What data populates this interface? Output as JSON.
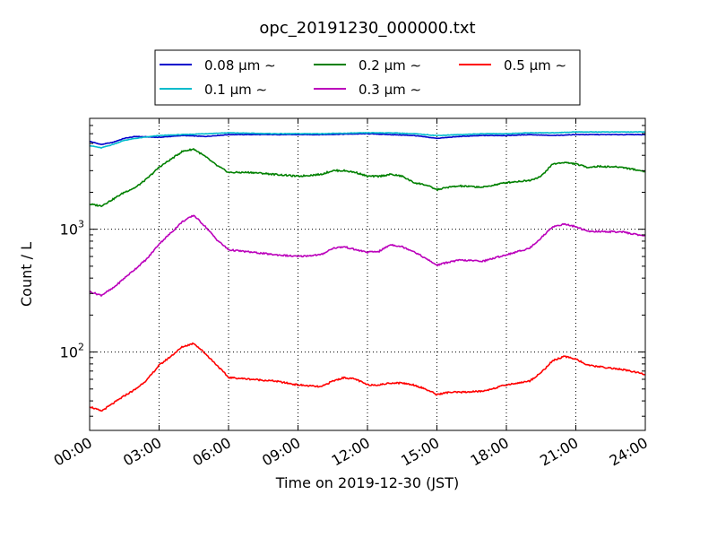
{
  "chart_data": {
    "type": "line",
    "title": "opc_20191230_000000.txt",
    "xlabel": "Time on 2019-12-30 (JST)",
    "ylabel": "Count / L",
    "yscale": "log",
    "xlim": [
      0,
      24
    ],
    "ylim": [
      23,
      8000
    ],
    "grid": true,
    "legend_position": "top-center",
    "x_tick_labels": [
      "00:00",
      "03:00",
      "06:00",
      "09:00",
      "12:00",
      "15:00",
      "18:00",
      "21:00",
      "24:00"
    ],
    "y_tick_labels": [
      {
        "value": 100,
        "base": "10",
        "exp": "2"
      },
      {
        "value": 1000,
        "base": "10",
        "exp": "3"
      }
    ],
    "series": [
      {
        "name": "0.08 μm ∼",
        "color": "#0000cc",
        "x": [
          0,
          0.5,
          1,
          1.5,
          2,
          3,
          4,
          5,
          6,
          8,
          10,
          12,
          13,
          14,
          15,
          16,
          17,
          18,
          19,
          20,
          21,
          22,
          23,
          24
        ],
        "y": [
          5200,
          4900,
          5100,
          5500,
          5700,
          5600,
          5800,
          5700,
          5900,
          5900,
          5900,
          6000,
          5900,
          5800,
          5500,
          5700,
          5800,
          5800,
          5900,
          5800,
          5900,
          5900,
          5900,
          5900
        ]
      },
      {
        "name": "0.1 μm ∼",
        "color": "#00bbcc",
        "x": [
          0,
          0.5,
          1,
          1.5,
          2,
          3,
          4,
          5,
          6,
          8,
          10,
          12,
          13,
          14,
          15,
          16,
          17,
          18,
          19,
          20,
          21,
          22,
          23,
          24
        ],
        "y": [
          4800,
          4600,
          4900,
          5300,
          5500,
          5800,
          5900,
          6000,
          6100,
          6000,
          6000,
          6100,
          6100,
          6000,
          5800,
          5900,
          6000,
          6000,
          6100,
          6100,
          6200,
          6200,
          6200,
          6200
        ]
      },
      {
        "name": "0.2 μm ∼",
        "color": "#008000",
        "x": [
          0,
          0.5,
          1,
          1.5,
          2,
          2.5,
          3,
          3.5,
          4,
          4.5,
          5,
          5.5,
          6,
          7,
          8,
          9,
          10,
          10.5,
          11,
          11.5,
          12,
          12.5,
          13,
          13.5,
          14,
          14.5,
          15,
          15.5,
          16,
          17,
          18,
          19,
          19.5,
          20,
          20.5,
          21,
          21.5,
          22,
          23,
          24
        ],
        "y": [
          1600,
          1550,
          1750,
          2000,
          2200,
          2600,
          3200,
          3700,
          4300,
          4500,
          3900,
          3300,
          2900,
          2900,
          2800,
          2700,
          2800,
          3000,
          3000,
          2900,
          2700,
          2700,
          2800,
          2700,
          2400,
          2300,
          2100,
          2200,
          2250,
          2200,
          2400,
          2500,
          2700,
          3400,
          3500,
          3400,
          3200,
          3250,
          3200,
          2950
        ]
      },
      {
        "name": "0.3 μm ∼",
        "color": "#bb00bb",
        "x": [
          0,
          0.5,
          1,
          1.5,
          2,
          2.5,
          3,
          3.5,
          4,
          4.5,
          5,
          5.5,
          6,
          7,
          8,
          9,
          10,
          10.5,
          11,
          11.5,
          12,
          12.5,
          13,
          13.5,
          14,
          14.5,
          15,
          15.5,
          16,
          17,
          18,
          19,
          19.5,
          20,
          20.5,
          21,
          21.5,
          22,
          23,
          24
        ],
        "y": [
          310,
          290,
          330,
          400,
          480,
          580,
          760,
          930,
          1150,
          1300,
          1050,
          820,
          680,
          650,
          620,
          600,
          620,
          700,
          720,
          680,
          650,
          660,
          750,
          720,
          660,
          580,
          510,
          540,
          560,
          550,
          620,
          700,
          850,
          1050,
          1100,
          1050,
          960,
          960,
          950,
          880
        ]
      },
      {
        "name": "0.5 μm ∼",
        "color": "#ff0000",
        "x": [
          0,
          0.5,
          1,
          1.5,
          2,
          2.5,
          3,
          3.5,
          4,
          4.5,
          5,
          5.5,
          6,
          7,
          8,
          9,
          10,
          10.5,
          11,
          11.5,
          12,
          12.5,
          13,
          13.5,
          14,
          14.5,
          15,
          15.5,
          16,
          17,
          18,
          19,
          19.5,
          20,
          20.5,
          21,
          21.5,
          22,
          23,
          24
        ],
        "y": [
          36,
          33,
          38,
          44,
          50,
          60,
          78,
          92,
          110,
          118,
          97,
          78,
          62,
          60,
          58,
          54,
          52,
          58,
          62,
          60,
          54,
          54,
          56,
          56,
          54,
          50,
          45,
          47,
          47,
          48,
          54,
          58,
          68,
          85,
          92,
          88,
          78,
          76,
          72,
          66
        ]
      }
    ]
  }
}
